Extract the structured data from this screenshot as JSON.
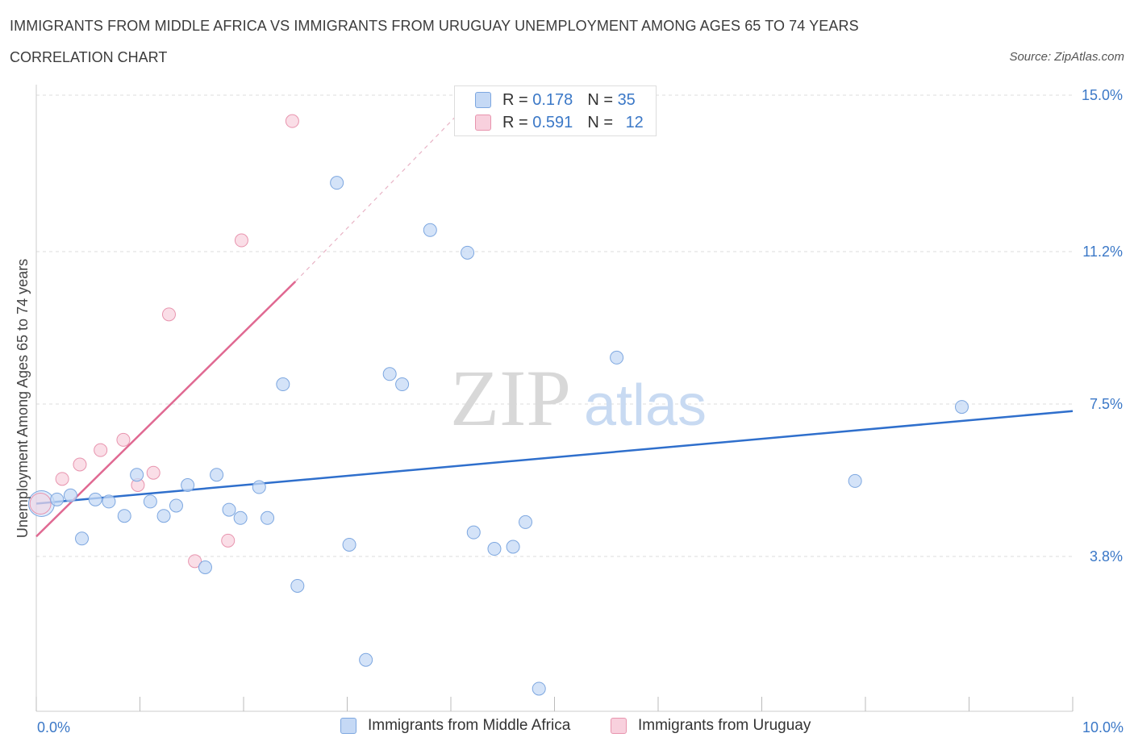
{
  "header": {
    "title": "IMMIGRANTS FROM MIDDLE AFRICA VS IMMIGRANTS FROM URUGUAY UNEMPLOYMENT AMONG AGES 65 TO 74 YEARS",
    "subtitle": "CORRELATION CHART",
    "source": "Source: ZipAtlas.com"
  },
  "watermark": {
    "zip": "ZIP",
    "atlas": "atlas"
  },
  "legend_top": {
    "r_label": "R =",
    "n_label": "N =",
    "series": [
      {
        "r": "0.178",
        "n": "35"
      },
      {
        "r": "0.591",
        "n": "12"
      }
    ]
  },
  "colors": {
    "blue_fill": "#c5d9f5",
    "blue_stroke": "#7da7e0",
    "blue_line": "#2f6fcc",
    "pink_fill": "#f8d0dd",
    "pink_stroke": "#e894ae",
    "pink_line": "#e06992",
    "tick_text": "#3b78c7"
  },
  "chart_data": {
    "type": "scatter",
    "title": "IMMIGRANTS FROM MIDDLE AFRICA VS IMMIGRANTS FROM URUGUAY UNEMPLOYMENT AMONG AGES 65 TO 74 YEARS",
    "xlabel": "",
    "ylabel": "Unemployment Among Ages 65 to 74 years",
    "xlim": [
      0,
      10
    ],
    "ylim": [
      0,
      15
    ],
    "x_tick_labels": [
      "0.0%",
      "10.0%"
    ],
    "y_ticks": [
      3.8,
      7.5,
      11.2,
      15.0
    ],
    "y_tick_labels": [
      "3.8%",
      "7.5%",
      "11.2%",
      "15.0%"
    ],
    "grid": true,
    "series": [
      {
        "name": "Immigrants from Middle Africa",
        "color": "blue",
        "R": 0.178,
        "N": 35,
        "trend": {
          "x": [
            0.0,
            10.0
          ],
          "y": [
            5.05,
            7.3
          ]
        },
        "points": [
          {
            "x": 0.05,
            "y": 5.05
          },
          {
            "x": 0.2,
            "y": 5.15
          },
          {
            "x": 0.33,
            "y": 5.25
          },
          {
            "x": 0.44,
            "y": 4.2
          },
          {
            "x": 0.57,
            "y": 5.15
          },
          {
            "x": 0.7,
            "y": 5.1
          },
          {
            "x": 0.85,
            "y": 4.75
          },
          {
            "x": 0.97,
            "y": 5.75
          },
          {
            "x": 1.1,
            "y": 5.1
          },
          {
            "x": 1.23,
            "y": 4.75
          },
          {
            "x": 1.35,
            "y": 5.0
          },
          {
            "x": 1.46,
            "y": 5.5
          },
          {
            "x": 1.63,
            "y": 3.5
          },
          {
            "x": 1.74,
            "y": 5.75
          },
          {
            "x": 1.86,
            "y": 4.9
          },
          {
            "x": 1.97,
            "y": 4.7
          },
          {
            "x": 2.15,
            "y": 5.45
          },
          {
            "x": 2.23,
            "y": 4.7
          },
          {
            "x": 2.38,
            "y": 7.95
          },
          {
            "x": 2.52,
            "y": 3.05
          },
          {
            "x": 2.9,
            "y": 12.85
          },
          {
            "x": 3.02,
            "y": 4.05
          },
          {
            "x": 3.18,
            "y": 1.25
          },
          {
            "x": 3.41,
            "y": 8.2
          },
          {
            "x": 3.53,
            "y": 7.95
          },
          {
            "x": 3.8,
            "y": 11.7
          },
          {
            "x": 4.16,
            "y": 11.15
          },
          {
            "x": 4.22,
            "y": 4.35
          },
          {
            "x": 4.42,
            "y": 3.95
          },
          {
            "x": 4.6,
            "y": 4.0
          },
          {
            "x": 4.72,
            "y": 4.6
          },
          {
            "x": 4.85,
            "y": 0.55
          },
          {
            "x": 5.6,
            "y": 8.6
          },
          {
            "x": 7.9,
            "y": 5.6
          },
          {
            "x": 8.93,
            "y": 7.4
          }
        ]
      },
      {
        "name": "Immigrants from Uruguay",
        "color": "pink",
        "R": 0.591,
        "N": 12,
        "trend": {
          "x": [
            0.0,
            2.5
          ],
          "y": [
            4.25,
            10.45
          ],
          "dash_to": {
            "x": 4.1,
            "y": 14.6
          }
        },
        "points": [
          {
            "x": 0.05,
            "y": 5.05
          },
          {
            "x": 0.25,
            "y": 5.65
          },
          {
            "x": 0.42,
            "y": 6.0
          },
          {
            "x": 0.62,
            "y": 6.35
          },
          {
            "x": 0.84,
            "y": 6.6
          },
          {
            "x": 0.98,
            "y": 5.5
          },
          {
            "x": 1.13,
            "y": 5.8
          },
          {
            "x": 1.28,
            "y": 9.65
          },
          {
            "x": 1.53,
            "y": 3.65
          },
          {
            "x": 1.85,
            "y": 4.15
          },
          {
            "x": 1.98,
            "y": 11.45
          },
          {
            "x": 2.47,
            "y": 14.35
          }
        ]
      }
    ]
  },
  "legend_bottom": {
    "items": [
      "Immigrants from Middle Africa",
      "Immigrants from Uruguay"
    ]
  }
}
